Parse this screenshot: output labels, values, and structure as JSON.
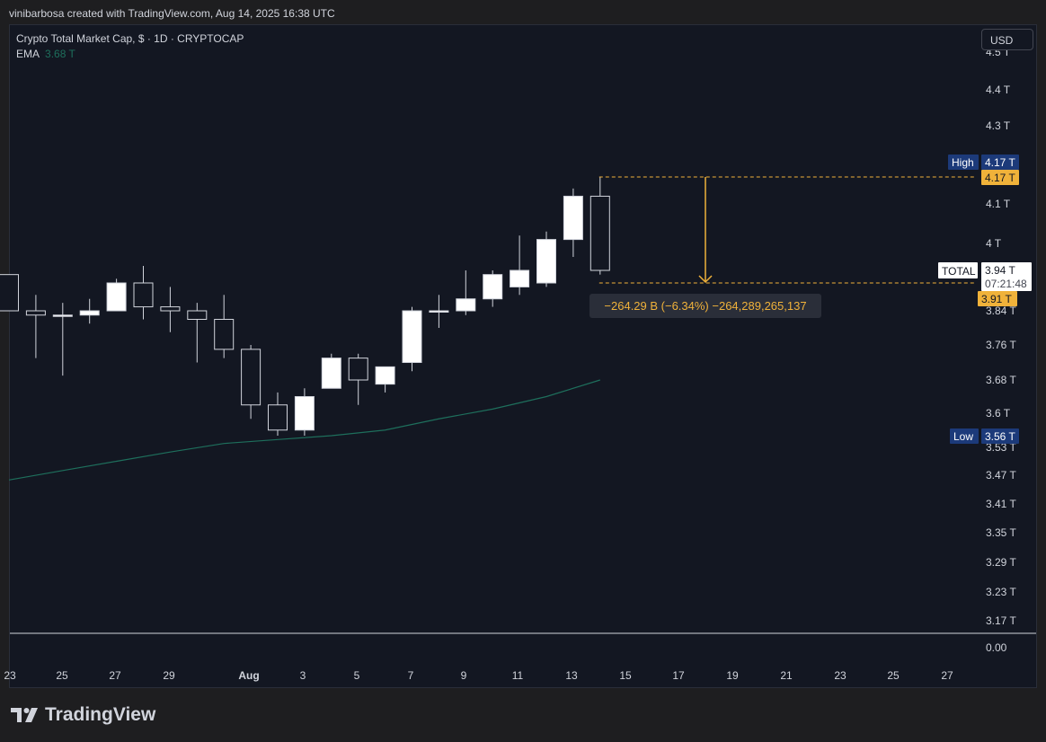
{
  "header": {
    "credit": "vinibarbosa created with TradingView.com, Aug 14, 2025 16:38 UTC"
  },
  "legend": {
    "symbol": "Crypto Total Market Cap, $ · 1D · CRYPTOCAP",
    "indicator": "EMA",
    "indicator_value": "3.68 T"
  },
  "currency_button": "USD",
  "brand": "TradingView",
  "price_axis": {
    "ticks": [
      "4.5 T",
      "4.4 T",
      "4.3 T",
      "4.1 T",
      "4 T",
      "3.84 T",
      "3.76 T",
      "3.68 T",
      "3.6 T",
      "3.53 T",
      "3.47 T",
      "3.41 T",
      "3.35 T",
      "3.29 T",
      "3.23 T",
      "3.17 T"
    ],
    "volume_tick": "0.00",
    "high_label": "High",
    "high_value": "4.17 T",
    "low_label": "Low",
    "low_value": "3.56 T",
    "measure_top": "4.17 T",
    "measure_bottom": "3.91 T",
    "symbol_label": "TOTAL",
    "last_price": "3.94 T",
    "countdown": "07:21:48"
  },
  "time_axis": [
    "23",
    "25",
    "27",
    "29",
    "Aug",
    "3",
    "5",
    "7",
    "9",
    "11",
    "13",
    "15",
    "17",
    "19",
    "21",
    "23",
    "25",
    "27"
  ],
  "measure": {
    "label": "−264.29 B (−6.34%) −264,289,265,137"
  },
  "colors": {
    "background": "#131722",
    "up_candle": "#ffffff",
    "down_candle": "#131722",
    "wick": "#d1d4dc",
    "ema": "#1e6f5c",
    "measure": "#f0b23a",
    "badge_blue": "#1c3a7a"
  },
  "chart_data": {
    "type": "candlestick",
    "title": "Crypto Total Market Cap, $ · 1D · CRYPTOCAP",
    "ylim": [
      3.12,
      4.5
    ],
    "x_start": "Jul 22",
    "x_end": "Aug 14",
    "candles": [
      {
        "date": "Jul 22",
        "o": 3.93,
        "h": 3.93,
        "l": 3.84,
        "c": 3.84
      },
      {
        "date": "Jul 23",
        "o": 3.84,
        "h": 3.88,
        "l": 3.73,
        "c": 3.83
      },
      {
        "date": "Jul 24",
        "o": 3.83,
        "h": 3.86,
        "l": 3.69,
        "c": 3.83
      },
      {
        "date": "Jul 25",
        "o": 3.83,
        "h": 3.87,
        "l": 3.81,
        "c": 3.84
      },
      {
        "date": "Jul 26",
        "o": 3.84,
        "h": 3.92,
        "l": 3.84,
        "c": 3.91
      },
      {
        "date": "Jul 27",
        "o": 3.91,
        "h": 3.95,
        "l": 3.82,
        "c": 3.85
      },
      {
        "date": "Jul 28",
        "o": 3.85,
        "h": 3.9,
        "l": 3.79,
        "c": 3.84
      },
      {
        "date": "Jul 29",
        "o": 3.84,
        "h": 3.86,
        "l": 3.72,
        "c": 3.82
      },
      {
        "date": "Jul 30",
        "o": 3.82,
        "h": 3.88,
        "l": 3.73,
        "c": 3.75
      },
      {
        "date": "Jul 31",
        "o": 3.75,
        "h": 3.76,
        "l": 3.59,
        "c": 3.62
      },
      {
        "date": "Aug 1",
        "o": 3.62,
        "h": 3.65,
        "l": 3.56,
        "c": 3.57
      },
      {
        "date": "Aug 2",
        "o": 3.57,
        "h": 3.66,
        "l": 3.56,
        "c": 3.64
      },
      {
        "date": "Aug 3",
        "o": 3.66,
        "h": 3.74,
        "l": 3.66,
        "c": 3.73
      },
      {
        "date": "Aug 4",
        "o": 3.73,
        "h": 3.74,
        "l": 3.62,
        "c": 3.68
      },
      {
        "date": "Aug 5",
        "o": 3.67,
        "h": 3.71,
        "l": 3.65,
        "c": 3.71
      },
      {
        "date": "Aug 6",
        "o": 3.72,
        "h": 3.85,
        "l": 3.7,
        "c": 3.84
      },
      {
        "date": "Aug 7",
        "o": 3.84,
        "h": 3.88,
        "l": 3.8,
        "c": 3.84
      },
      {
        "date": "Aug 8",
        "o": 3.84,
        "h": 3.94,
        "l": 3.83,
        "c": 3.87
      },
      {
        "date": "Aug 9",
        "o": 3.87,
        "h": 3.94,
        "l": 3.85,
        "c": 3.93
      },
      {
        "date": "Aug 10",
        "o": 3.9,
        "h": 4.02,
        "l": 3.88,
        "c": 3.94
      },
      {
        "date": "Aug 11",
        "o": 3.91,
        "h": 4.03,
        "l": 3.9,
        "c": 4.01
      },
      {
        "date": "Aug 12",
        "o": 4.01,
        "h": 4.14,
        "l": 3.97,
        "c": 4.12
      },
      {
        "date": "Aug 13",
        "o": 4.12,
        "h": 4.17,
        "l": 3.93,
        "c": 3.94
      }
    ],
    "ema": [
      {
        "date": "Jul 22",
        "v": 3.46
      },
      {
        "date": "Jul 24",
        "v": 3.48
      },
      {
        "date": "Jul 26",
        "v": 3.5
      },
      {
        "date": "Jul 28",
        "v": 3.52
      },
      {
        "date": "Jul 30",
        "v": 3.54
      },
      {
        "date": "Aug 1",
        "v": 3.55
      },
      {
        "date": "Aug 3",
        "v": 3.56
      },
      {
        "date": "Aug 5",
        "v": 3.57
      },
      {
        "date": "Aug 7",
        "v": 3.59
      },
      {
        "date": "Aug 9",
        "v": 3.61
      },
      {
        "date": "Aug 11",
        "v": 3.64
      },
      {
        "date": "Aug 13",
        "v": 3.68
      }
    ],
    "measurement": {
      "from": 4.17,
      "to": 3.91,
      "change": "−264.29 B",
      "percent": "−6.34%"
    }
  }
}
